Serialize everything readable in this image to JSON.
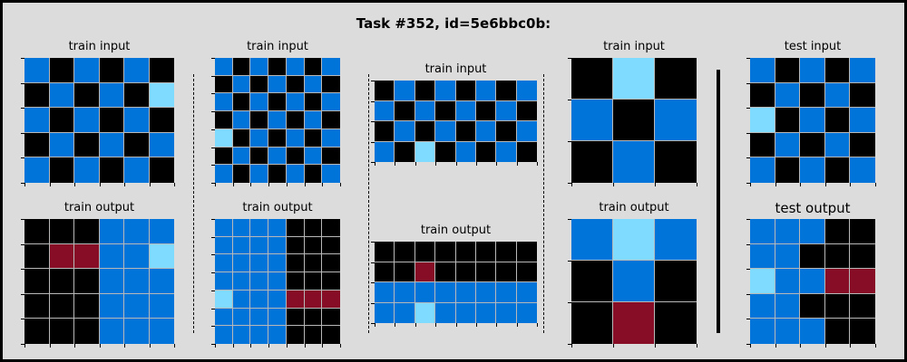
{
  "title": "Task #352, id=5e6bbc0b:",
  "colors": {
    "0": "#000000",
    "1": "#0074d9",
    "2": "#7fdbff",
    "3": "#870c25"
  },
  "panels": [
    {
      "label": "train input",
      "big": false,
      "grid": [
        [
          1,
          0,
          1,
          0,
          1,
          0
        ],
        [
          0,
          1,
          0,
          1,
          0,
          2
        ],
        [
          1,
          0,
          1,
          0,
          1,
          0
        ],
        [
          0,
          1,
          0,
          1,
          0,
          1
        ],
        [
          1,
          0,
          1,
          0,
          1,
          0
        ]
      ]
    },
    {
      "label": "train output",
      "big": false,
      "grid": [
        [
          0,
          0,
          0,
          1,
          1,
          1
        ],
        [
          0,
          3,
          3,
          1,
          1,
          2
        ],
        [
          0,
          0,
          0,
          1,
          1,
          1
        ],
        [
          0,
          0,
          0,
          1,
          1,
          1
        ],
        [
          0,
          0,
          0,
          1,
          1,
          1
        ]
      ]
    },
    {
      "label": "train input",
      "big": false,
      "grid": [
        [
          1,
          0,
          1,
          0,
          1,
          0,
          1
        ],
        [
          0,
          1,
          0,
          1,
          0,
          1,
          0
        ],
        [
          1,
          0,
          1,
          0,
          1,
          0,
          1
        ],
        [
          0,
          1,
          0,
          1,
          0,
          1,
          0
        ],
        [
          2,
          0,
          1,
          0,
          1,
          0,
          1
        ],
        [
          0,
          1,
          0,
          1,
          0,
          1,
          0
        ],
        [
          1,
          0,
          1,
          0,
          1,
          0,
          1
        ]
      ]
    },
    {
      "label": "train output",
      "big": false,
      "grid": [
        [
          1,
          1,
          1,
          1,
          0,
          0,
          0
        ],
        [
          1,
          1,
          1,
          1,
          0,
          0,
          0
        ],
        [
          1,
          1,
          1,
          1,
          0,
          0,
          0
        ],
        [
          1,
          1,
          1,
          1,
          0,
          0,
          0
        ],
        [
          2,
          1,
          1,
          1,
          3,
          3,
          3
        ],
        [
          1,
          1,
          1,
          1,
          0,
          0,
          0
        ],
        [
          1,
          1,
          1,
          1,
          0,
          0,
          0
        ]
      ]
    },
    {
      "label": "train input",
      "big": false,
      "grid": [
        [
          0,
          1,
          0,
          1,
          0,
          1,
          0,
          1
        ],
        [
          1,
          0,
          1,
          0,
          1,
          0,
          1,
          0
        ],
        [
          0,
          1,
          0,
          1,
          0,
          1,
          0,
          1
        ],
        [
          1,
          0,
          2,
          0,
          1,
          0,
          1,
          0
        ]
      ]
    },
    {
      "label": "train output",
      "big": false,
      "grid": [
        [
          0,
          0,
          0,
          0,
          0,
          0,
          0,
          0
        ],
        [
          0,
          0,
          3,
          0,
          0,
          0,
          0,
          0
        ],
        [
          1,
          1,
          1,
          1,
          1,
          1,
          1,
          1
        ],
        [
          1,
          1,
          2,
          1,
          1,
          1,
          1,
          1
        ]
      ]
    },
    {
      "label": "train input",
      "big": false,
      "grid": [
        [
          0,
          2,
          0
        ],
        [
          1,
          0,
          1
        ],
        [
          0,
          1,
          0
        ]
      ]
    },
    {
      "label": "train output",
      "big": false,
      "grid": [
        [
          1,
          2,
          1
        ],
        [
          0,
          1,
          0
        ],
        [
          0,
          3,
          0
        ]
      ]
    },
    {
      "label": "test input",
      "big": false,
      "grid": [
        [
          1,
          0,
          1,
          0,
          1
        ],
        [
          0,
          1,
          0,
          1,
          0
        ],
        [
          2,
          0,
          1,
          0,
          1
        ],
        [
          0,
          1,
          0,
          1,
          0
        ],
        [
          1,
          0,
          1,
          0,
          1
        ]
      ]
    },
    {
      "label": "test output",
      "big": true,
      "grid": [
        [
          1,
          1,
          1,
          0,
          0
        ],
        [
          1,
          1,
          0,
          0,
          0
        ],
        [
          2,
          1,
          1,
          3,
          3
        ],
        [
          1,
          1,
          0,
          0,
          0
        ],
        [
          1,
          1,
          1,
          0,
          0
        ]
      ]
    }
  ]
}
